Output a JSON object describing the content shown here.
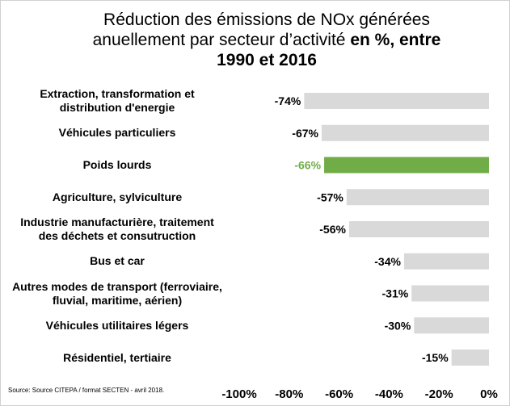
{
  "title": {
    "line1": "Réduction des émissions de NOx générées",
    "line2_regular": "anuellement par secteur d’activité",
    "line2_bold": "en %, entre",
    "line3": "1990 et 2016"
  },
  "source": "Source: Source CITEPA / format SECTEN - avril 2018.",
  "colors": {
    "bar": "#d9d9d9",
    "highlight": "#70ad47",
    "label": "#000000"
  },
  "chart_data": {
    "type": "bar",
    "orientation": "horizontal",
    "categories": [
      [
        "Extraction, transformation et",
        "distribution d'energie"
      ],
      [
        "Véhicules particuliers"
      ],
      [
        "Poids lourds"
      ],
      [
        "Agriculture, sylviculture"
      ],
      [
        "Industrie manufacturière, traitement",
        "des déchets et consutruction"
      ],
      [
        "Bus et car"
      ],
      [
        "Autres modes de transport (ferroviaire,",
        "fluvial, maritime, aérien)"
      ],
      [
        "Véhicules utilitaires légers"
      ],
      [
        "Résidentiel, tertiaire"
      ]
    ],
    "values": [
      -74,
      -67,
      -66,
      -57,
      -56,
      -34,
      -31,
      -30,
      -15
    ],
    "data_labels": [
      "-74%",
      "-67%",
      "-66%",
      "-57%",
      "-56%",
      "-34%",
      "-31%",
      "-30%",
      "-15%"
    ],
    "highlight_index": 2,
    "xlim": [
      -100,
      0
    ],
    "xticks": [
      "-100%",
      "-80%",
      "-60%",
      "-40%",
      "-20%",
      "0%"
    ],
    "grid": false
  }
}
